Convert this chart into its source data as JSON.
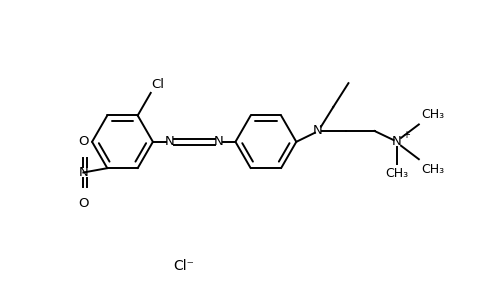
{
  "background_color": "#ffffff",
  "line_color": "#000000",
  "line_width": 1.4,
  "font_size": 9.5,
  "figsize": [
    4.97,
    2.88
  ],
  "dpi": 100,
  "xlim": [
    0.0,
    10.0
  ],
  "ylim": [
    0.0,
    6.5
  ]
}
